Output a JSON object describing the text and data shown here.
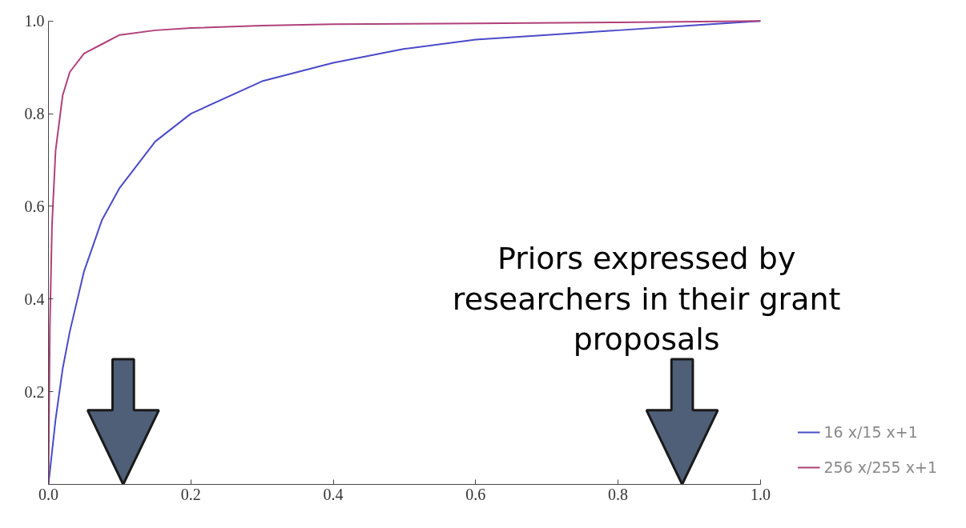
{
  "chart_data": {
    "type": "line",
    "xlim": [
      0,
      1.0
    ],
    "ylim": [
      0,
      1.0
    ],
    "xticks": [
      {
        "value": 0,
        "label": "0.0"
      },
      {
        "value": 0.2,
        "label": "0.2"
      },
      {
        "value": 0.4,
        "label": "0.4"
      },
      {
        "value": 0.6,
        "label": "0.6"
      },
      {
        "value": 0.8,
        "label": "0.8"
      },
      {
        "value": 1.0,
        "label": "1.0"
      }
    ],
    "yticks": [
      {
        "value": 0.2,
        "label": "0.2"
      },
      {
        "value": 0.4,
        "label": "0.4"
      },
      {
        "value": 0.6,
        "label": "0.6"
      },
      {
        "value": 0.8,
        "label": "0.8"
      },
      {
        "value": 1.0,
        "label": "1.0"
      }
    ],
    "grid": false,
    "legend": "bottom right",
    "marker": "none",
    "line_style": "solid",
    "series": [
      {
        "name": "16 x/15 x+1",
        "color": "#4a4ac8",
        "x": [
          0,
          0.01,
          0.02,
          0.03,
          0.05,
          0.075,
          0.1,
          0.15,
          0.2,
          0.3,
          0.4,
          0.5,
          0.6,
          0.7,
          0.8,
          0.9,
          1.0
        ],
        "values": [
          0,
          0.14,
          0.25,
          0.33,
          0.46,
          0.57,
          0.64,
          0.74,
          0.8,
          0.87,
          0.91,
          0.94,
          0.96,
          0.97,
          0.98,
          0.99,
          1.0
        ]
      },
      {
        "name": "256 x/255 x+1",
        "color": "#b0407a",
        "x": [
          0,
          0.002,
          0.005,
          0.01,
          0.02,
          0.03,
          0.05,
          0.075,
          0.1,
          0.15,
          0.2,
          0.3,
          0.4,
          0.6,
          0.8,
          1.0
        ],
        "values": [
          0,
          0.34,
          0.56,
          0.72,
          0.84,
          0.89,
          0.93,
          0.95,
          0.97,
          0.98,
          0.985,
          0.99,
          0.993,
          0.995,
          0.997,
          1.0
        ]
      }
    ],
    "annotations": [
      "Priors expressed by\nresearchers in their grant\nproposals"
    ]
  }
}
